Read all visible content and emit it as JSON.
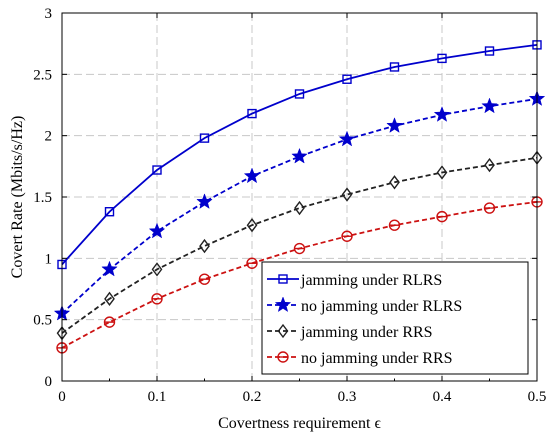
{
  "chart_data": {
    "type": "line",
    "title": "",
    "xlabel": "Covertness requirement ϵ",
    "ylabel": "Covert Rate (Mbits/s/Hz)",
    "xlim": [
      0,
      0.5
    ],
    "ylim": [
      0,
      3
    ],
    "grid": true,
    "legend_position": "bottom-right",
    "x": [
      0,
      0.05,
      0.1,
      0.15,
      0.2,
      0.25,
      0.3,
      0.35,
      0.4,
      0.45,
      0.5
    ],
    "x_ticks": [
      "0",
      "0.1",
      "0.2",
      "0.3",
      "0.4",
      "0.5"
    ],
    "y_ticks": [
      "0",
      "0.5",
      "1",
      "1.5",
      "2",
      "2.5",
      "3"
    ],
    "series": [
      {
        "name": "jamming under RLRS",
        "color": "#0000cc",
        "marker": "square",
        "line": "solid",
        "values": [
          0.95,
          1.38,
          1.72,
          1.98,
          2.18,
          2.34,
          2.46,
          2.56,
          2.63,
          2.69,
          2.74
        ]
      },
      {
        "name": "no jamming under RLRS",
        "color": "#0000cc",
        "marker": "star",
        "line": "dashed",
        "values": [
          0.55,
          0.91,
          1.22,
          1.46,
          1.67,
          1.83,
          1.97,
          2.08,
          2.17,
          2.24,
          2.3
        ]
      },
      {
        "name": "jamming under RRS",
        "color": "#222222",
        "marker": "diamond",
        "line": "dashed",
        "values": [
          0.39,
          0.67,
          0.91,
          1.1,
          1.27,
          1.41,
          1.52,
          1.62,
          1.7,
          1.76,
          1.82
        ]
      },
      {
        "name": "no jamming under RRS",
        "color": "#cc1111",
        "marker": "circle",
        "line": "dashed",
        "values": [
          0.27,
          0.48,
          0.67,
          0.83,
          0.96,
          1.08,
          1.18,
          1.27,
          1.34,
          1.41,
          1.46
        ]
      }
    ]
  }
}
